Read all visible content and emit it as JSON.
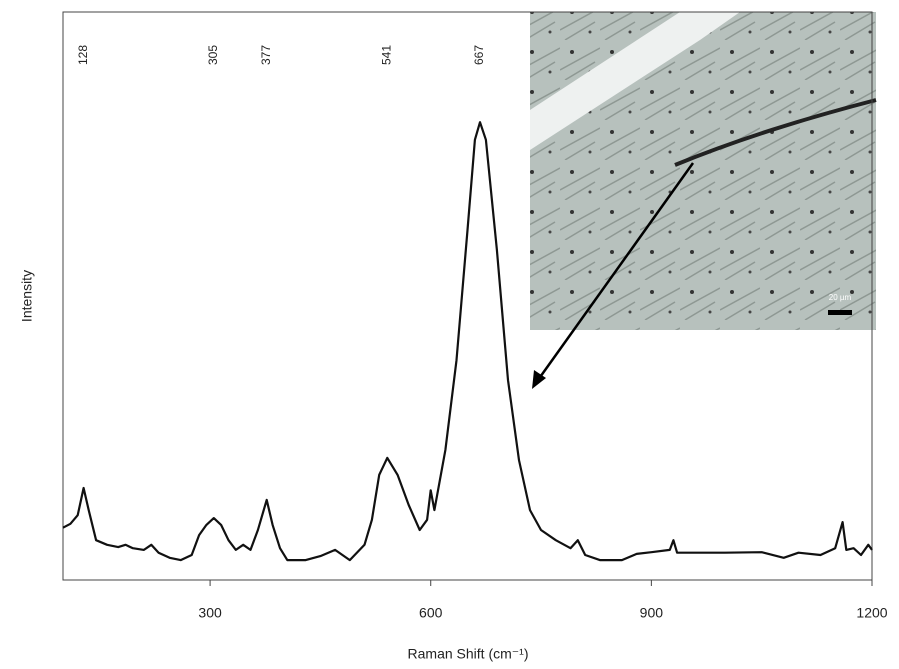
{
  "chart_data": {
    "type": "line",
    "xlabel": "Raman Shift (cm⁻¹)",
    "ylabel": "Intensity",
    "x": [
      100,
      110,
      120,
      128,
      135,
      145,
      160,
      175,
      185,
      195,
      210,
      220,
      230,
      245,
      260,
      275,
      285,
      295,
      305,
      315,
      325,
      335,
      345,
      355,
      365,
      377,
      385,
      395,
      405,
      430,
      450,
      470,
      490,
      510,
      520,
      530,
      541,
      555,
      570,
      585,
      595,
      600,
      605,
      620,
      635,
      650,
      660,
      667,
      675,
      690,
      705,
      720,
      735,
      750,
      770,
      790,
      800,
      810,
      830,
      860,
      880,
      900,
      925,
      930,
      935,
      960,
      1000,
      1050,
      1080,
      1100,
      1130,
      1150,
      1160,
      1165,
      1175,
      1185,
      1195,
      1200
    ],
    "values": [
      9.2,
      9.9,
      11.4,
      16.2,
      12.3,
      7.0,
      6.2,
      5.8,
      6.2,
      5.6,
      5.3,
      6.2,
      4.8,
      3.9,
      3.5,
      4.4,
      7.9,
      9.7,
      10.9,
      9.7,
      7.0,
      5.3,
      6.2,
      5.3,
      8.8,
      14.1,
      9.7,
      5.6,
      3.5,
      3.5,
      4.2,
      5.3,
      3.5,
      6.2,
      10.6,
      18.5,
      21.5,
      18.5,
      13.2,
      8.8,
      10.6,
      15.8,
      12.3,
      22.9,
      38.7,
      61.6,
      77.5,
      80.6,
      77.5,
      58.1,
      35.2,
      21.1,
      12.3,
      8.8,
      7.0,
      5.6,
      7.0,
      4.4,
      3.5,
      3.5,
      4.6,
      4.9,
      5.3,
      7.0,
      4.8,
      4.8,
      4.8,
      4.9,
      3.9,
      4.8,
      4.4,
      5.6,
      10.2,
      5.3,
      5.6,
      4.4,
      6.2,
      5.3
    ],
    "color": "#111111",
    "xlim": [
      100,
      1200
    ],
    "ylim": [
      0,
      100
    ],
    "xticks": [
      300,
      600,
      900,
      1200
    ],
    "peak_labels": [
      128,
      305,
      377,
      541,
      667
    ],
    "inset_scale_label": "20 µm"
  }
}
